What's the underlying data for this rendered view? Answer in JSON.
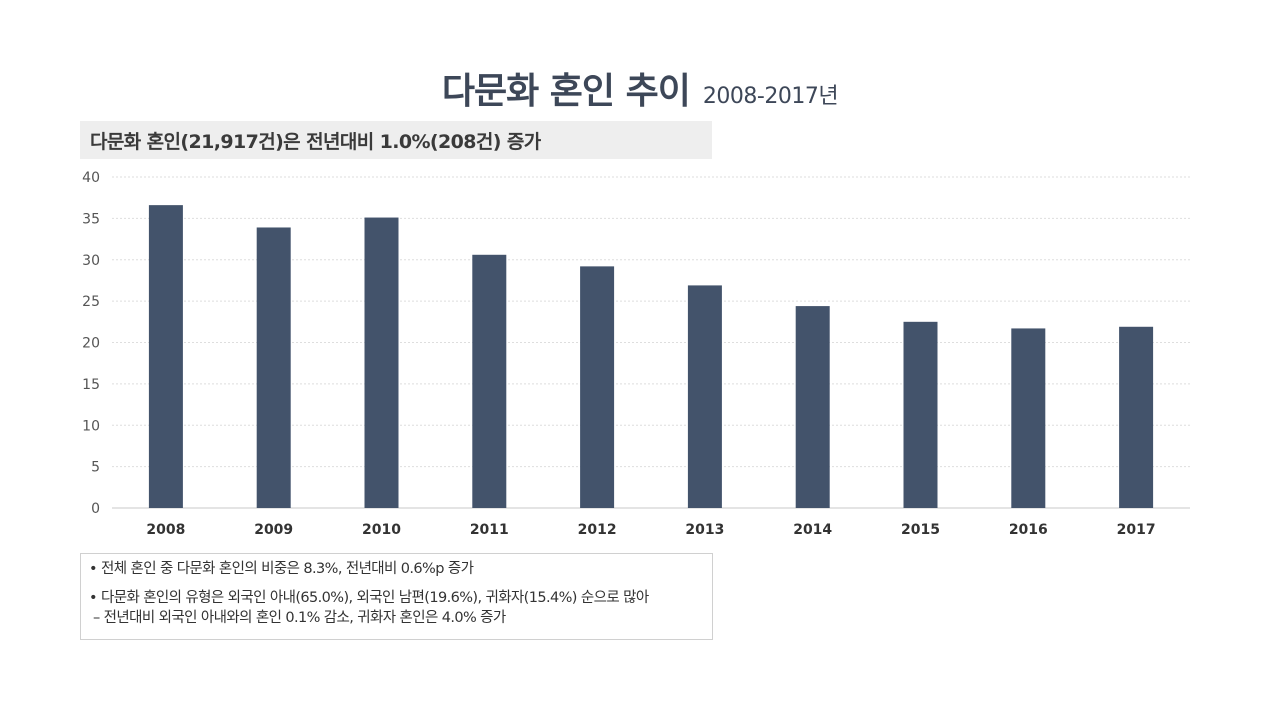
{
  "title": {
    "main": "다문화 혼인 추이",
    "period": "2008-2017년"
  },
  "headline": "다문화 혼인(21,917건)은 전년대비 1.0%(208건) 증가",
  "chart_data": {
    "type": "bar",
    "categories": [
      "2008",
      "2009",
      "2010",
      "2011",
      "2012",
      "2013",
      "2014",
      "2015",
      "2016",
      "2017"
    ],
    "values": [
      36.6,
      33.9,
      35.1,
      30.6,
      29.2,
      26.9,
      24.4,
      22.5,
      21.7,
      21.9
    ],
    "ylim": [
      0,
      40
    ],
    "yticks": [
      "0",
      "5",
      "10",
      "15",
      "20",
      "25",
      "30",
      "35",
      "40"
    ],
    "title": "다문화 혼인 추이",
    "xlabel": "",
    "ylabel": "",
    "grid": true,
    "bar_color": "#43536b"
  },
  "notes": {
    "item1": "• 전체 혼인 중 다문화 혼인의 비중은 8.3%, 전년대비 0.6%p 증가",
    "item2": "• 다문화 혼인의 유형은 외국인 아내(65.0%), 외국인 남편(19.6%), 귀화자(15.4%) 순으로 많아",
    "item2_sub": "– 전년대비 외국인 아내와의 혼인 0.1% 감소, 귀화자 혼인은 4.0% 증가"
  }
}
